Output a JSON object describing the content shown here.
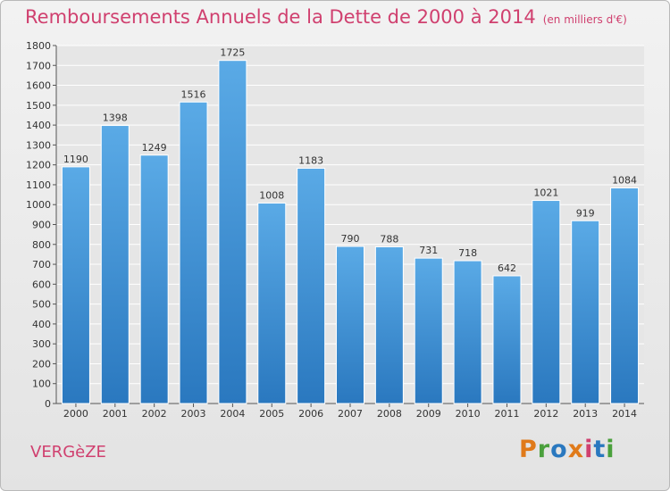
{
  "chart_data": {
    "type": "bar",
    "title": "Remboursements Annuels de la Dette de 2000 à 2014",
    "subtitle": "(en milliers d'€)",
    "categories": [
      "2000",
      "2001",
      "2002",
      "2003",
      "2004",
      "2005",
      "2006",
      "2007",
      "2008",
      "2009",
      "2010",
      "2011",
      "2012",
      "2013",
      "2014"
    ],
    "values": [
      1190,
      1398,
      1249,
      1516,
      1725,
      1008,
      1183,
      790,
      788,
      731,
      718,
      642,
      1021,
      919,
      1084
    ],
    "ylim": [
      0,
      1800
    ],
    "yticks": [
      0,
      100,
      200,
      300,
      400,
      500,
      600,
      700,
      800,
      900,
      1000,
      1100,
      1200,
      1300,
      1400,
      1500,
      1600,
      1700,
      1800
    ],
    "grid": true,
    "bar_color_top": "#5aaae6",
    "bar_color_bottom": "#2a78bf"
  },
  "footer": {
    "town": "VERGèZE",
    "logo": "Proxiti"
  },
  "colors": {
    "title": "#d0406f",
    "logo_letters": [
      "#e07a1a",
      "#4aa03c",
      "#2a78bf",
      "#e07a1a",
      "#d0406f",
      "#2a78bf",
      "#4aa03c"
    ]
  }
}
